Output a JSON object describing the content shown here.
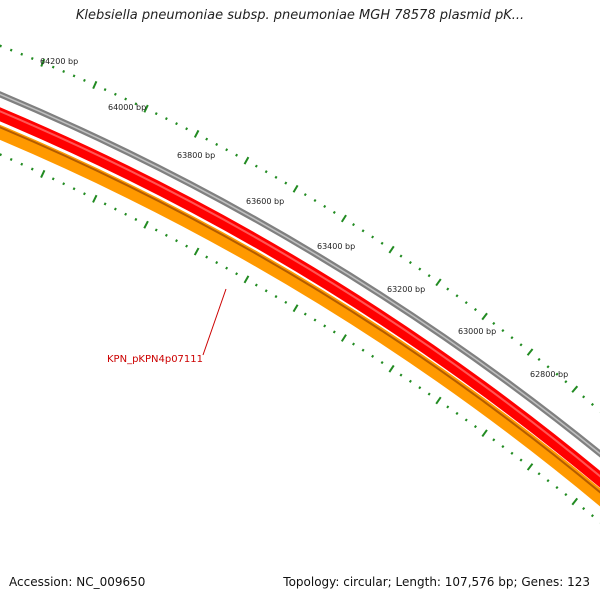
{
  "header": {
    "title": "Klebsiella pneumoniae subsp. pneumoniae MGH 78578 plasmid pK..."
  },
  "footer": {
    "accession": "Accession: NC_009650",
    "summary": "Topology: circular; Length: 107,576 bp; Genes: 123"
  },
  "map": {
    "tick_labels": [
      "64200 bp",
      "64000 bp",
      "63800 bp",
      "63600 bp",
      "63400 bp",
      "63200 bp",
      "63000 bp",
      "62800 bp"
    ],
    "gene_label": "KPN_pKPN4p07111",
    "colors": {
      "backbone": "#808080",
      "forward_feature": "#ff0000",
      "reverse_feature": "#ff9900",
      "tick": "#228b22",
      "gene_label": "#cc0000"
    }
  }
}
